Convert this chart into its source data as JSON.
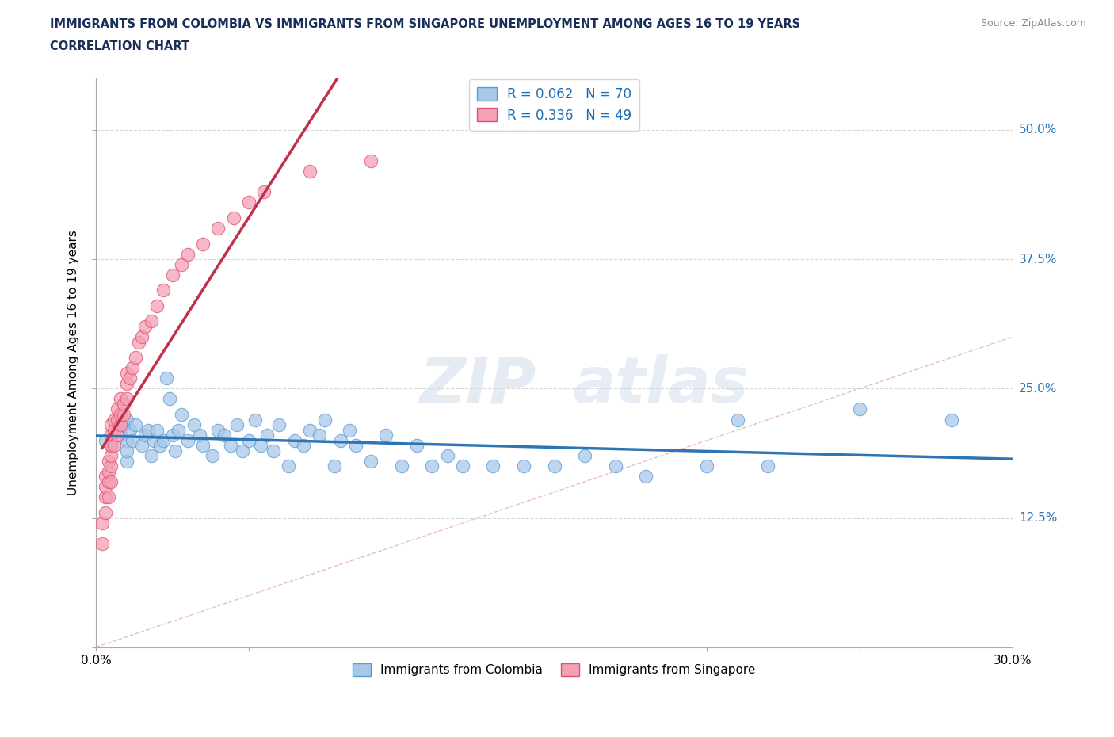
{
  "title_line1": "IMMIGRANTS FROM COLOMBIA VS IMMIGRANTS FROM SINGAPORE UNEMPLOYMENT AMONG AGES 16 TO 19 YEARS",
  "title_line2": "CORRELATION CHART",
  "source_text": "Source: ZipAtlas.com",
  "xlabel": "Immigrants from Colombia",
  "ylabel": "Unemployment Among Ages 16 to 19 years",
  "xlim": [
    0.0,
    0.3
  ],
  "ylim": [
    0.0,
    0.55
  ],
  "xticks": [
    0.0,
    0.05,
    0.1,
    0.15,
    0.2,
    0.25,
    0.3
  ],
  "xticklabels": [
    "0.0%",
    "",
    "",
    "",
    "",
    "",
    "30.0%"
  ],
  "ytick_positions": [
    0.0,
    0.125,
    0.25,
    0.375,
    0.5
  ],
  "ytick_labels_right": [
    "",
    "12.5%",
    "25.0%",
    "37.5%",
    "50.0%"
  ],
  "colombia_color": "#a8c8e8",
  "singapore_color": "#f4a0b5",
  "colombia_edge_color": "#5b9bd5",
  "singapore_edge_color": "#e05070",
  "colombia_line_color": "#2e75b6",
  "singapore_line_color": "#c0304a",
  "R_colombia": 0.062,
  "N_colombia": 70,
  "R_singapore": 0.336,
  "N_singapore": 49,
  "colombia_x": [
    0.003,
    0.005,
    0.007,
    0.008,
    0.009,
    0.01,
    0.01,
    0.01,
    0.01,
    0.011,
    0.012,
    0.013,
    0.015,
    0.016,
    0.017,
    0.018,
    0.019,
    0.02,
    0.021,
    0.022,
    0.023,
    0.024,
    0.025,
    0.026,
    0.027,
    0.028,
    0.03,
    0.032,
    0.034,
    0.035,
    0.038,
    0.04,
    0.042,
    0.044,
    0.046,
    0.048,
    0.05,
    0.052,
    0.054,
    0.056,
    0.058,
    0.06,
    0.063,
    0.065,
    0.068,
    0.07,
    0.073,
    0.075,
    0.078,
    0.08,
    0.083,
    0.085,
    0.09,
    0.095,
    0.1,
    0.105,
    0.11,
    0.115,
    0.12,
    0.13,
    0.14,
    0.15,
    0.16,
    0.17,
    0.18,
    0.2,
    0.21,
    0.22,
    0.25,
    0.28
  ],
  "colombia_y": [
    0.2,
    0.195,
    0.21,
    0.205,
    0.215,
    0.22,
    0.18,
    0.2,
    0.19,
    0.21,
    0.2,
    0.215,
    0.195,
    0.205,
    0.21,
    0.185,
    0.2,
    0.21,
    0.195,
    0.2,
    0.26,
    0.24,
    0.205,
    0.19,
    0.21,
    0.225,
    0.2,
    0.215,
    0.205,
    0.195,
    0.185,
    0.21,
    0.205,
    0.195,
    0.215,
    0.19,
    0.2,
    0.22,
    0.195,
    0.205,
    0.19,
    0.215,
    0.175,
    0.2,
    0.195,
    0.21,
    0.205,
    0.22,
    0.175,
    0.2,
    0.21,
    0.195,
    0.18,
    0.205,
    0.175,
    0.195,
    0.175,
    0.185,
    0.175,
    0.175,
    0.175,
    0.175,
    0.185,
    0.175,
    0.165,
    0.175,
    0.22,
    0.175,
    0.23,
    0.22
  ],
  "singapore_x": [
    0.002,
    0.002,
    0.003,
    0.003,
    0.003,
    0.003,
    0.004,
    0.004,
    0.004,
    0.004,
    0.005,
    0.005,
    0.005,
    0.005,
    0.005,
    0.005,
    0.006,
    0.006,
    0.006,
    0.007,
    0.007,
    0.007,
    0.008,
    0.008,
    0.008,
    0.009,
    0.009,
    0.01,
    0.01,
    0.01,
    0.011,
    0.012,
    0.013,
    0.014,
    0.015,
    0.016,
    0.018,
    0.02,
    0.022,
    0.025,
    0.028,
    0.03,
    0.035,
    0.04,
    0.045,
    0.05,
    0.055,
    0.07,
    0.09
  ],
  "singapore_y": [
    0.1,
    0.12,
    0.13,
    0.145,
    0.155,
    0.165,
    0.145,
    0.16,
    0.17,
    0.18,
    0.16,
    0.175,
    0.185,
    0.195,
    0.205,
    0.215,
    0.195,
    0.21,
    0.22,
    0.205,
    0.22,
    0.23,
    0.215,
    0.225,
    0.24,
    0.225,
    0.235,
    0.24,
    0.255,
    0.265,
    0.26,
    0.27,
    0.28,
    0.295,
    0.3,
    0.31,
    0.315,
    0.33,
    0.345,
    0.36,
    0.37,
    0.38,
    0.39,
    0.405,
    0.415,
    0.43,
    0.44,
    0.46,
    0.47
  ]
}
